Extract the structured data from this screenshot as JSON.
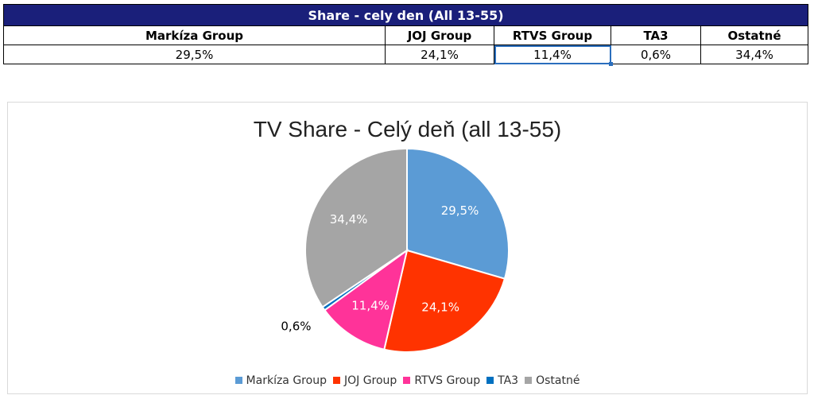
{
  "table": {
    "title": "Share - cely den (All 13-55)",
    "headers": [
      "Markíza Group",
      "JOJ Group",
      "RTVS Group",
      "TA3",
      "Ostatné"
    ],
    "values": [
      "29,5%",
      "24,1%",
      "11,4%",
      "0,6%",
      "34,4%"
    ],
    "selected_column": 2
  },
  "chart_data": {
    "type": "pie",
    "title": "TV Share - Celý deň (all 13-55)",
    "categories": [
      "Markíza Group",
      "JOJ Group",
      "RTVS Group",
      "TA3",
      "Ostatné"
    ],
    "values": [
      29.5,
      24.1,
      11.4,
      0.6,
      34.4
    ],
    "labels": [
      "29,5%",
      "24,1%",
      "11,4%",
      "0,6%",
      "34,4%"
    ],
    "colors": [
      "#5b9bd5",
      "#ff3300",
      "#ff3399",
      "#0070c0",
      "#a5a5a5"
    ],
    "legend_position": "bottom"
  }
}
